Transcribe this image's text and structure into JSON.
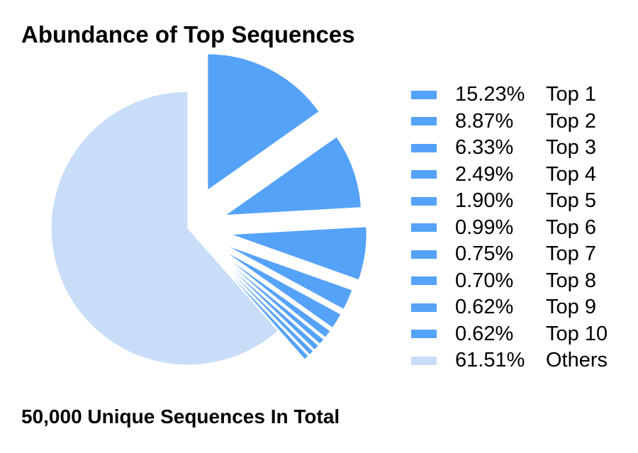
{
  "title": "Abundance of Top Sequences",
  "footer": "50,000 Unique Sequences In Total",
  "colors": {
    "top": "#55a2f9",
    "others": "#c8ddf7"
  },
  "chart_data": {
    "type": "pie",
    "title": "Abundance of Top Sequences",
    "legend_position": "right",
    "slices": [
      {
        "label": "Top 1",
        "percent_label": "15.23%",
        "value": 15.23,
        "color": "#55a2f9",
        "exploded": true
      },
      {
        "label": "Top 2",
        "percent_label": "8.87%",
        "value": 8.87,
        "color": "#55a2f9",
        "exploded": true
      },
      {
        "label": "Top 3",
        "percent_label": "6.33%",
        "value": 6.33,
        "color": "#55a2f9",
        "exploded": true
      },
      {
        "label": "Top 4",
        "percent_label": "2.49%",
        "value": 2.49,
        "color": "#55a2f9",
        "exploded": true
      },
      {
        "label": "Top 5",
        "percent_label": "1.90%",
        "value": 1.9,
        "color": "#55a2f9",
        "exploded": true
      },
      {
        "label": "Top 6",
        "percent_label": "0.99%",
        "value": 0.99,
        "color": "#55a2f9",
        "exploded": true
      },
      {
        "label": "Top 7",
        "percent_label": "0.75%",
        "value": 0.75,
        "color": "#55a2f9",
        "exploded": true
      },
      {
        "label": "Top 8",
        "percent_label": "0.70%",
        "value": 0.7,
        "color": "#55a2f9",
        "exploded": true
      },
      {
        "label": "Top 9",
        "percent_label": "0.62%",
        "value": 0.62,
        "color": "#55a2f9",
        "exploded": true
      },
      {
        "label": "Top 10",
        "percent_label": "0.62%",
        "value": 0.62,
        "color": "#55a2f9",
        "exploded": true
      },
      {
        "label": "Others",
        "percent_label": "61.51%",
        "value": 61.51,
        "color": "#c8ddf7",
        "exploded": false
      }
    ]
  }
}
